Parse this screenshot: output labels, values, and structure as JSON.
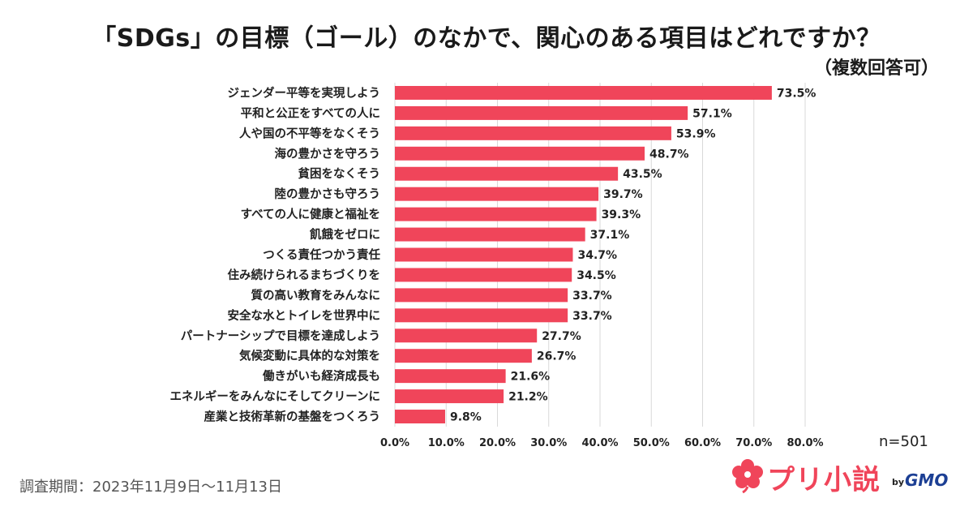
{
  "header": {
    "title": "「SDGs」の目標（ゴール）のなかで、関心のある項目はどれですか？",
    "subtitle": "（複数回答可）"
  },
  "sample_size": "n=501",
  "footnote": "調査期間：2023年11月9日〜11月13日",
  "logo": {
    "name": "プリ小説",
    "by": "by",
    "company": "GMO"
  },
  "colors": {
    "bar": "#f0455a",
    "grid": "#d9d9d9"
  },
  "chart_data": {
    "type": "bar",
    "orientation": "horizontal",
    "title": "「SDGs」の目標（ゴール）のなかで、関心のある項目はどれですか？",
    "subtitle": "（複数回答可）",
    "categories": [
      "ジェンダー平等を実現しよう",
      "平和と公正をすべての人に",
      "人や国の不平等をなくそう",
      "海の豊かさを守ろう",
      "貧困をなくそう",
      "陸の豊かさも守ろう",
      "すべての人に健康と福祉を",
      "飢餓をゼロに",
      "つくる責任つかう責任",
      "住み続けられるまちづくりを",
      "質の高い教育をみんなに",
      "安全な水とトイレを世界中に",
      "パートナーシップで目標を達成しよう",
      "気候変動に具体的な対策を",
      "働きがいも経済成長も",
      "エネルギーをみんなにそしてクリーンに",
      "産業と技術革新の基盤をつくろう"
    ],
    "values": [
      73.5,
      57.1,
      53.9,
      48.7,
      43.5,
      39.7,
      39.3,
      37.1,
      34.7,
      34.5,
      33.7,
      33.7,
      27.7,
      26.7,
      21.6,
      21.2,
      9.8
    ],
    "value_labels": [
      "73.5%",
      "57.1%",
      "53.9%",
      "48.7%",
      "43.5%",
      "39.7%",
      "39.3%",
      "37.1%",
      "34.7%",
      "34.5%",
      "33.7%",
      "33.7%",
      "27.7%",
      "26.7%",
      "21.6%",
      "21.2%",
      "9.8%"
    ],
    "xlim": [
      0,
      80
    ],
    "xticks": [
      0,
      10,
      20,
      30,
      40,
      50,
      60,
      70,
      80
    ],
    "xtick_labels": [
      "0.0%",
      "10.0%",
      "20.0%",
      "30.0%",
      "40.0%",
      "50.0%",
      "60.0%",
      "70.0%",
      "80.0%"
    ],
    "grid": true,
    "xlabel": "",
    "ylabel": ""
  }
}
